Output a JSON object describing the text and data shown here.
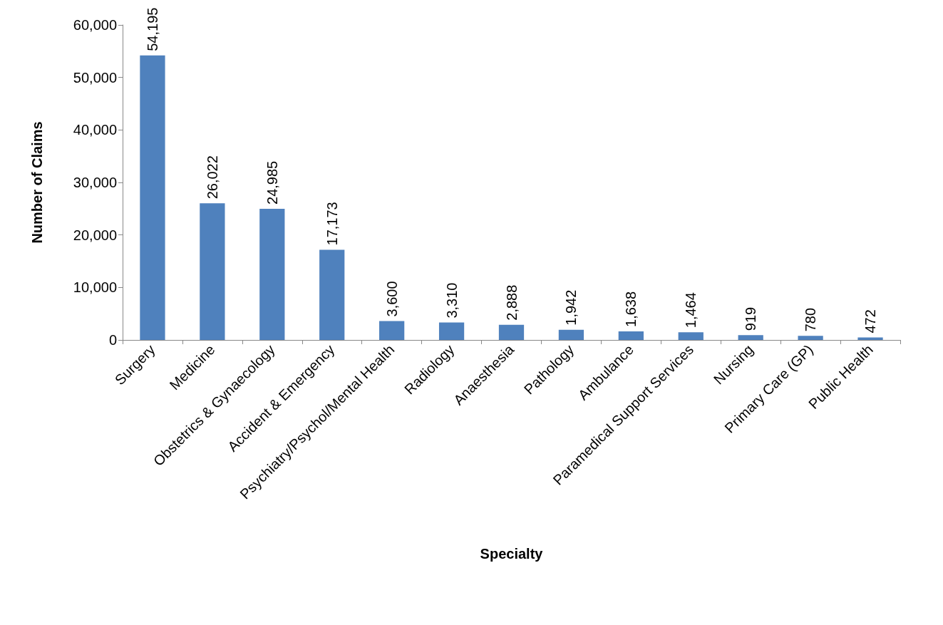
{
  "chart_data": {
    "type": "bar",
    "xlabel": "Specialty",
    "ylabel": "Number of Claims",
    "categories": [
      "Surgery",
      "Medicine",
      "Obstetrics & Gynaecology",
      "Accident & Emergency",
      "Psychiatry/Psychol/Mental Health",
      "Radiology",
      "Anaesthesia",
      "Pathology",
      "Ambulance",
      "Paramedical Support Services",
      "Nursing",
      "Primary Care (GP)",
      "Public Health"
    ],
    "values": [
      54195,
      26022,
      24985,
      17173,
      3600,
      3310,
      2888,
      1942,
      1638,
      1464,
      919,
      780,
      472
    ],
    "value_labels": [
      "54,195",
      "26,022",
      "24,985",
      "17,173",
      "3,600",
      "3,310",
      "2,888",
      "1,942",
      "1,638",
      "1,464",
      "919",
      "780",
      "472"
    ],
    "color": "#4f81bd",
    "ylim": [
      0,
      60000
    ],
    "yticks": [
      0,
      {
        "value": 10000,
        "label": "10,000"
      },
      {
        "value": 20000,
        "label": "20,000"
      },
      {
        "value": 30000,
        "label": "30,000"
      },
      {
        "value": 40000,
        "label": "40,000"
      },
      {
        "value": 50000,
        "label": "50,000"
      },
      {
        "value": 60000,
        "label": "60,000"
      }
    ],
    "grid": false
  }
}
